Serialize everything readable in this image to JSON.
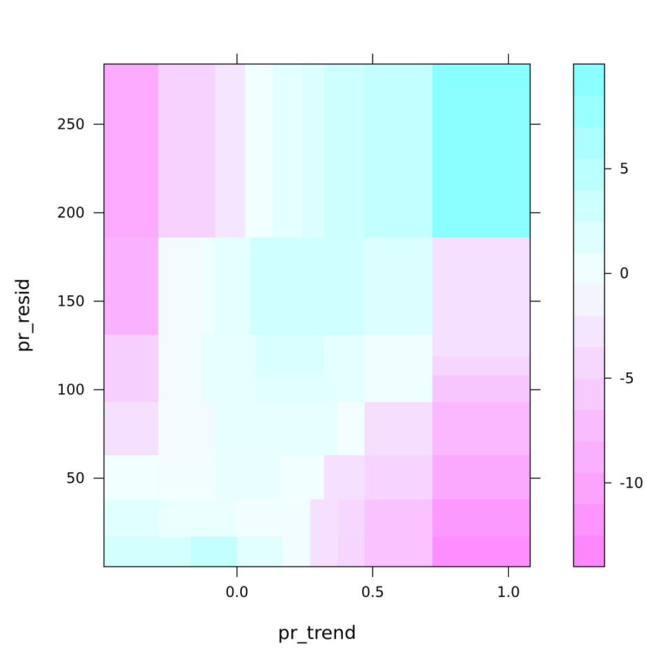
{
  "chart_data": {
    "type": "heatmap",
    "xlabel": "pr_trend",
    "ylabel": "pr_resid",
    "x_ticks": [
      "0.0",
      "0.5",
      "1.0"
    ],
    "x_tick_values": [
      0.0,
      0.5,
      1.0
    ],
    "y_ticks": [
      "50",
      "100",
      "150",
      "200",
      "250"
    ],
    "y_tick_values": [
      50,
      100,
      150,
      200,
      250
    ],
    "colorbar_ticks": [
      "5",
      "0",
      "-5",
      "-10"
    ],
    "colorbar_tick_values": [
      5,
      0,
      -5,
      -10
    ],
    "xlim": [
      -0.49,
      1.08
    ],
    "ylim": [
      0,
      284
    ],
    "zlim": [
      -14,
      10
    ],
    "colorbar_levels": [
      -14,
      -12.5,
      -11,
      -9.5,
      -8,
      -6.5,
      -5,
      -3.5,
      -2,
      -0.5,
      1,
      2.5,
      4,
      5.5,
      7,
      8.5,
      10
    ],
    "color_low": "#ff80ff",
    "color_mid": "#f2ffff",
    "color_high": "#80ffff",
    "cells": [
      {
        "x0": -0.49,
        "x1": -0.29,
        "y0": 186,
        "y1": 284,
        "z": -9.4
      },
      {
        "x0": -0.29,
        "x1": -0.08,
        "y0": 186,
        "y1": 284,
        "z": -5.0
      },
      {
        "x0": -0.08,
        "x1": 0.03,
        "y0": 186,
        "y1": 284,
        "z": -2.8
      },
      {
        "x0": 0.03,
        "x1": 0.13,
        "y0": 186,
        "y1": 284,
        "z": 0.1
      },
      {
        "x0": 0.13,
        "x1": 0.24,
        "y0": 186,
        "y1": 284,
        "z": 1.2
      },
      {
        "x0": 0.24,
        "x1": 0.32,
        "y0": 186,
        "y1": 284,
        "z": 2.0
      },
      {
        "x0": 0.32,
        "x1": 0.47,
        "y0": 186,
        "y1": 284,
        "z": 3.2
      },
      {
        "x0": 0.47,
        "x1": 0.72,
        "y0": 186,
        "y1": 284,
        "z": 4.2
      },
      {
        "x0": 0.72,
        "x1": 1.08,
        "y0": 186,
        "y1": 284,
        "z": 9.2
      },
      {
        "x0": -0.49,
        "x1": -0.29,
        "y0": 131,
        "y1": 186,
        "z": -8.6
      },
      {
        "x0": -0.29,
        "x1": -0.13,
        "y0": 131,
        "y1": 186,
        "z": -0.3
      },
      {
        "x0": -0.13,
        "x1": -0.08,
        "y0": 131,
        "y1": 186,
        "z": 0.4
      },
      {
        "x0": -0.08,
        "x1": 0.05,
        "y0": 131,
        "y1": 186,
        "z": 1.2
      },
      {
        "x0": 0.05,
        "x1": 0.47,
        "y0": 131,
        "y1": 186,
        "z": 3.0
      },
      {
        "x0": 0.47,
        "x1": 0.72,
        "y0": 131,
        "y1": 186,
        "z": 2.0
      },
      {
        "x0": 0.72,
        "x1": 1.08,
        "y0": 131,
        "y1": 186,
        "z": -3.4
      },
      {
        "x0": -0.49,
        "x1": -0.29,
        "y0": 93,
        "y1": 131,
        "z": -5.2
      },
      {
        "x0": -0.29,
        "x1": -0.13,
        "y0": 93,
        "y1": 131,
        "z": -0.4
      },
      {
        "x0": -0.13,
        "x1": 0.07,
        "y0": 93,
        "y1": 131,
        "z": 0.9
      },
      {
        "x0": 0.07,
        "x1": 0.32,
        "y0": 107,
        "y1": 131,
        "z": 2.2
      },
      {
        "x0": 0.07,
        "x1": 0.32,
        "y0": 93,
        "y1": 107,
        "z": 1.4
      },
      {
        "x0": 0.32,
        "x1": 0.47,
        "y0": 93,
        "y1": 131,
        "z": 1.3
      },
      {
        "x0": 0.47,
        "x1": 0.72,
        "y0": 93,
        "y1": 131,
        "z": 0.3
      },
      {
        "x0": 0.72,
        "x1": 1.08,
        "y0": 108,
        "y1": 119,
        "z": -4.6
      },
      {
        "x0": 0.72,
        "x1": 1.08,
        "y0": 119,
        "y1": 131,
        "z": -3.4
      },
      {
        "x0": 0.72,
        "x1": 1.08,
        "y0": 93,
        "y1": 108,
        "z": -6.3
      },
      {
        "x0": -0.49,
        "x1": -0.29,
        "y0": 63,
        "y1": 93,
        "z": -3.4
      },
      {
        "x0": -0.29,
        "x1": -0.08,
        "y0": 63,
        "y1": 93,
        "z": -0.3
      },
      {
        "x0": -0.08,
        "x1": 0.37,
        "y0": 63,
        "y1": 93,
        "z": 0.9
      },
      {
        "x0": 0.37,
        "x1": 0.47,
        "y0": 63,
        "y1": 93,
        "z": -0.1
      },
      {
        "x0": 0.47,
        "x1": 0.72,
        "y0": 63,
        "y1": 93,
        "z": -3.6
      },
      {
        "x0": 0.72,
        "x1": 1.08,
        "y0": 63,
        "y1": 93,
        "z": -7.8
      },
      {
        "x0": -0.49,
        "x1": -0.29,
        "y0": 38,
        "y1": 63,
        "z": 0.0
      },
      {
        "x0": -0.29,
        "x1": -0.08,
        "y0": 38,
        "y1": 63,
        "z": -0.2
      },
      {
        "x0": -0.08,
        "x1": 0.16,
        "y0": 38,
        "y1": 63,
        "z": 0.8
      },
      {
        "x0": 0.16,
        "x1": 0.32,
        "y0": 38,
        "y1": 63,
        "z": 0.0
      },
      {
        "x0": 0.32,
        "x1": 0.47,
        "y0": 38,
        "y1": 63,
        "z": -3.4
      },
      {
        "x0": 0.47,
        "x1": 0.72,
        "y0": 38,
        "y1": 63,
        "z": -4.9
      },
      {
        "x0": 0.72,
        "x1": 1.08,
        "y0": 38,
        "y1": 63,
        "z": -9.6
      },
      {
        "x0": -0.49,
        "x1": -0.29,
        "y0": 17,
        "y1": 38,
        "z": 1.6
      },
      {
        "x0": -0.29,
        "x1": 0.0,
        "y0": 17,
        "y1": 38,
        "z": 0.7
      },
      {
        "x0": 0.0,
        "x1": 0.27,
        "y0": 17,
        "y1": 38,
        "z": -0.2
      },
      {
        "x0": 0.27,
        "x1": 0.37,
        "y0": 17,
        "y1": 38,
        "z": -3.4
      },
      {
        "x0": 0.37,
        "x1": 0.47,
        "y0": 17,
        "y1": 38,
        "z": -4.4
      },
      {
        "x0": 0.47,
        "x1": 0.72,
        "y0": 17,
        "y1": 38,
        "z": -6.6
      },
      {
        "x0": 0.72,
        "x1": 1.08,
        "y0": 17,
        "y1": 38,
        "z": -11.2
      },
      {
        "x0": -0.49,
        "x1": -0.17,
        "y0": 0,
        "y1": 17,
        "z": 2.7
      },
      {
        "x0": -0.17,
        "x1": 0.0,
        "y0": 0,
        "y1": 17,
        "z": 4.0
      },
      {
        "x0": 0.0,
        "x1": 0.17,
        "y0": 0,
        "y1": 17,
        "z": 1.4
      },
      {
        "x0": 0.17,
        "x1": 0.27,
        "y0": 0,
        "y1": 17,
        "z": -0.2
      },
      {
        "x0": 0.27,
        "x1": 0.37,
        "y0": 0,
        "y1": 17,
        "z": -3.4
      },
      {
        "x0": 0.37,
        "x1": 0.47,
        "y0": 0,
        "y1": 17,
        "z": -4.6
      },
      {
        "x0": 0.47,
        "x1": 0.72,
        "y0": 0,
        "y1": 17,
        "z": -6.6
      },
      {
        "x0": 0.72,
        "x1": 1.08,
        "y0": 0,
        "y1": 17,
        "z": -12.5
      }
    ]
  }
}
